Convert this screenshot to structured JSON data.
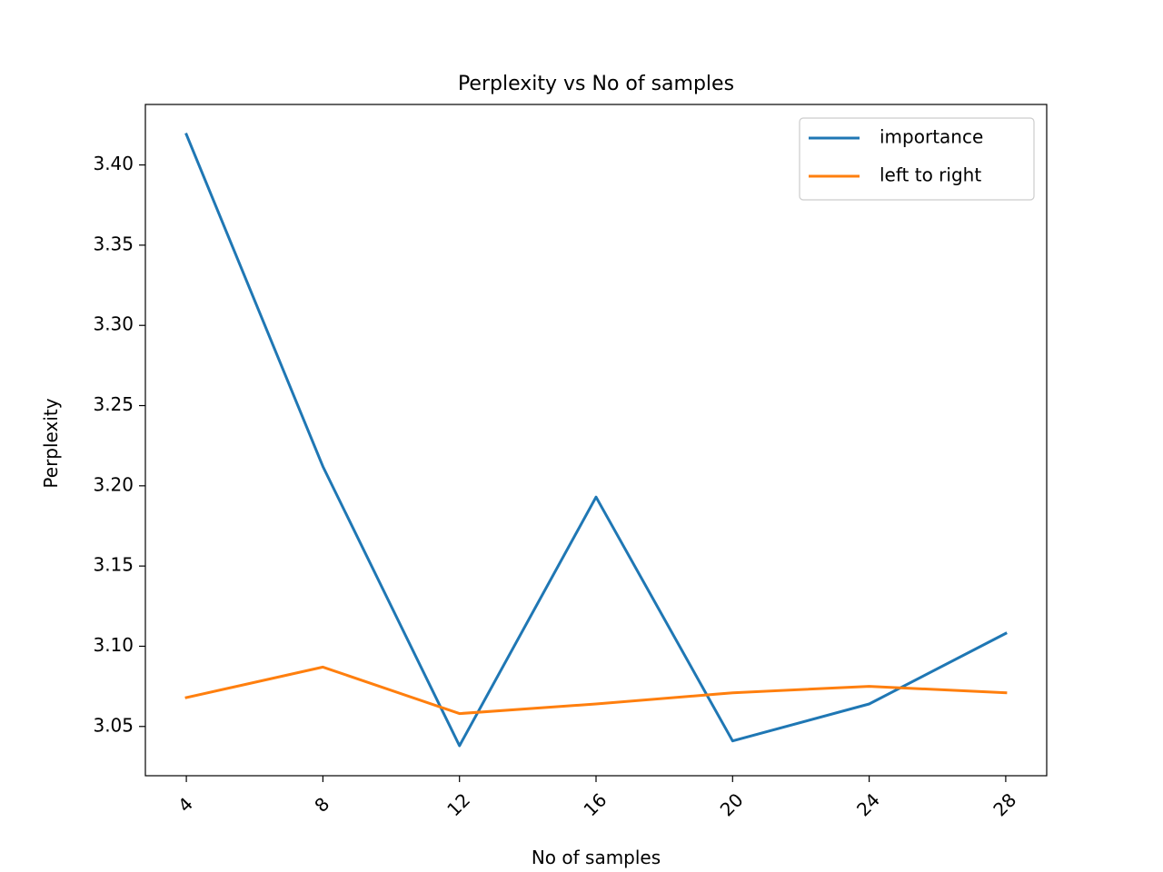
{
  "chart_data": {
    "type": "line",
    "title": "Perplexity vs No of samples",
    "xlabel": "No of samples",
    "ylabel": "Perplexity",
    "x": [
      4,
      8,
      12,
      16,
      20,
      24,
      28
    ],
    "x_tick_labels": [
      "4",
      "8",
      "12",
      "16",
      "20",
      "24",
      "28"
    ],
    "y_ticks": [
      3.05,
      3.1,
      3.15,
      3.2,
      3.25,
      3.3,
      3.35,
      3.4
    ],
    "y_tick_labels": [
      "3.05",
      "3.10",
      "3.15",
      "3.20",
      "3.25",
      "3.30",
      "3.35",
      "3.40"
    ],
    "xlim": [
      2.8,
      29.2
    ],
    "ylim": [
      3.0193,
      3.4377
    ],
    "grid": false,
    "legend_position": "top-right",
    "series": [
      {
        "name": "importance",
        "color": "#1f77b4",
        "values": [
          3.419,
          3.212,
          3.038,
          3.193,
          3.041,
          3.064,
          3.108
        ]
      },
      {
        "name": "left to right",
        "color": "#ff7f0e",
        "values": [
          3.068,
          3.087,
          3.058,
          3.064,
          3.071,
          3.075,
          3.071
        ]
      }
    ]
  }
}
